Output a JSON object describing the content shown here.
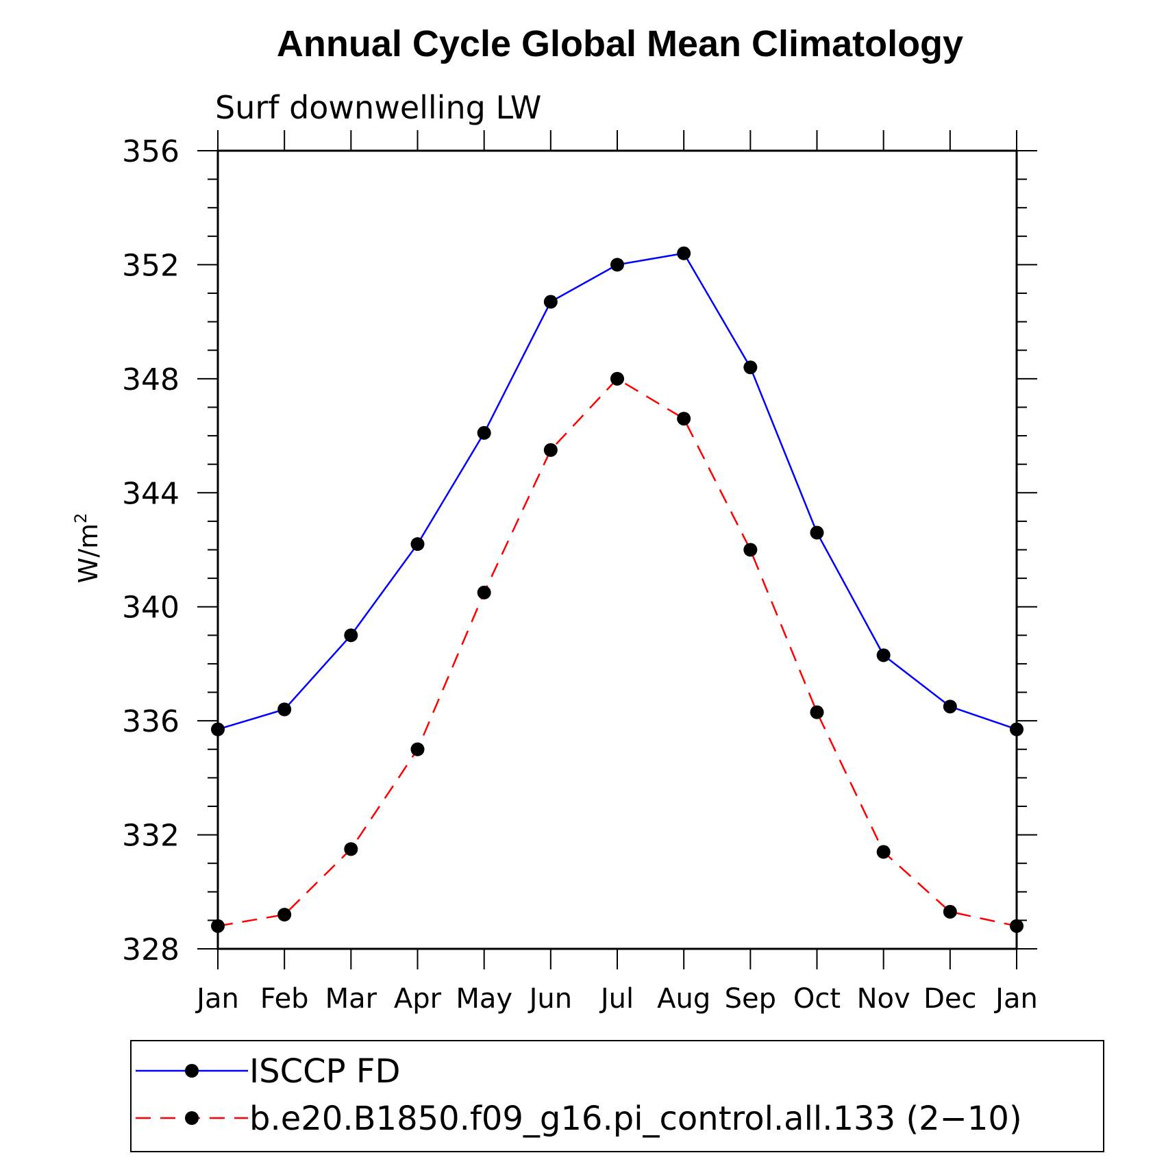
{
  "chart_data": {
    "type": "line",
    "title": "Annual Cycle Global Mean Climatology",
    "subtitle": "Surf  downwelling  LW",
    "ylabel": "W/m",
    "ylabel_superscript": "2",
    "xlabel": "",
    "ylim": [
      328,
      356
    ],
    "yticks": [
      328,
      332,
      336,
      340,
      344,
      348,
      352,
      356
    ],
    "categories": [
      "Jan",
      "Feb",
      "Mar",
      "Apr",
      "May",
      "Jun",
      "Jul",
      "Aug",
      "Sep",
      "Oct",
      "Nov",
      "Dec",
      "Jan"
    ],
    "grid": false,
    "legend_position": "bottom",
    "series": [
      {
        "name": "ISCCP FD",
        "color": "#0000ff",
        "dash": "solid",
        "values": [
          335.7,
          336.4,
          339.0,
          342.2,
          346.1,
          350.7,
          352.0,
          352.4,
          348.4,
          342.6,
          338.3,
          336.5,
          335.7
        ]
      },
      {
        "name": "b.e20.B1850.f09_g16.pi_control.all.133 (2−10)",
        "color": "#ff0000",
        "dash": "dashed",
        "values": [
          328.8,
          329.2,
          331.5,
          335.0,
          340.5,
          345.5,
          348.0,
          346.6,
          342.0,
          336.3,
          331.4,
          329.3,
          328.8
        ]
      }
    ]
  }
}
